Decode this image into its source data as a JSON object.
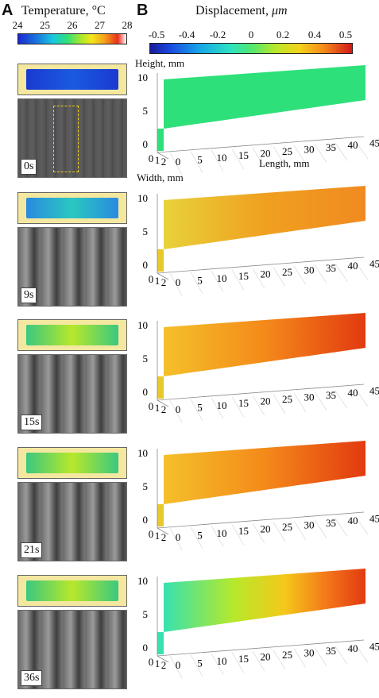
{
  "panels": {
    "a_letter": "A",
    "b_letter": "B"
  },
  "temperature_scale": {
    "title": "Temperature, °C",
    "ticks": [
      "24",
      "25",
      "26",
      "27",
      "28"
    ]
  },
  "displacement_scale": {
    "title_prefix": "Displacement, ",
    "title_unit": "μm",
    "ticks": [
      "-0.5",
      "-0.4",
      "-0.2",
      "0",
      "0.2",
      "0.4",
      "0.5"
    ]
  },
  "axis_titles": {
    "height": "Height, mm",
    "width": "Width, mm",
    "length": "Length, mm"
  },
  "axis_ticks": {
    "height": [
      "0",
      "5",
      "10"
    ],
    "width": [
      "0",
      "1",
      "2"
    ],
    "length": [
      "0",
      "5",
      "10",
      "15",
      "20",
      "25",
      "30",
      "35",
      "40",
      "45"
    ]
  },
  "rows": [
    {
      "time": "0s",
      "field": "uniform"
    },
    {
      "time": "9s",
      "field": "warm"
    },
    {
      "time": "15s",
      "field": "warmer"
    },
    {
      "time": "21s",
      "field": "warmer"
    },
    {
      "time": "36s",
      "field": "gradient"
    }
  ],
  "colors": {
    "uniform": "#2ee07a",
    "warm": "#f0a020",
    "hot": "#e23a10",
    "cool": "#36e2b0"
  }
}
